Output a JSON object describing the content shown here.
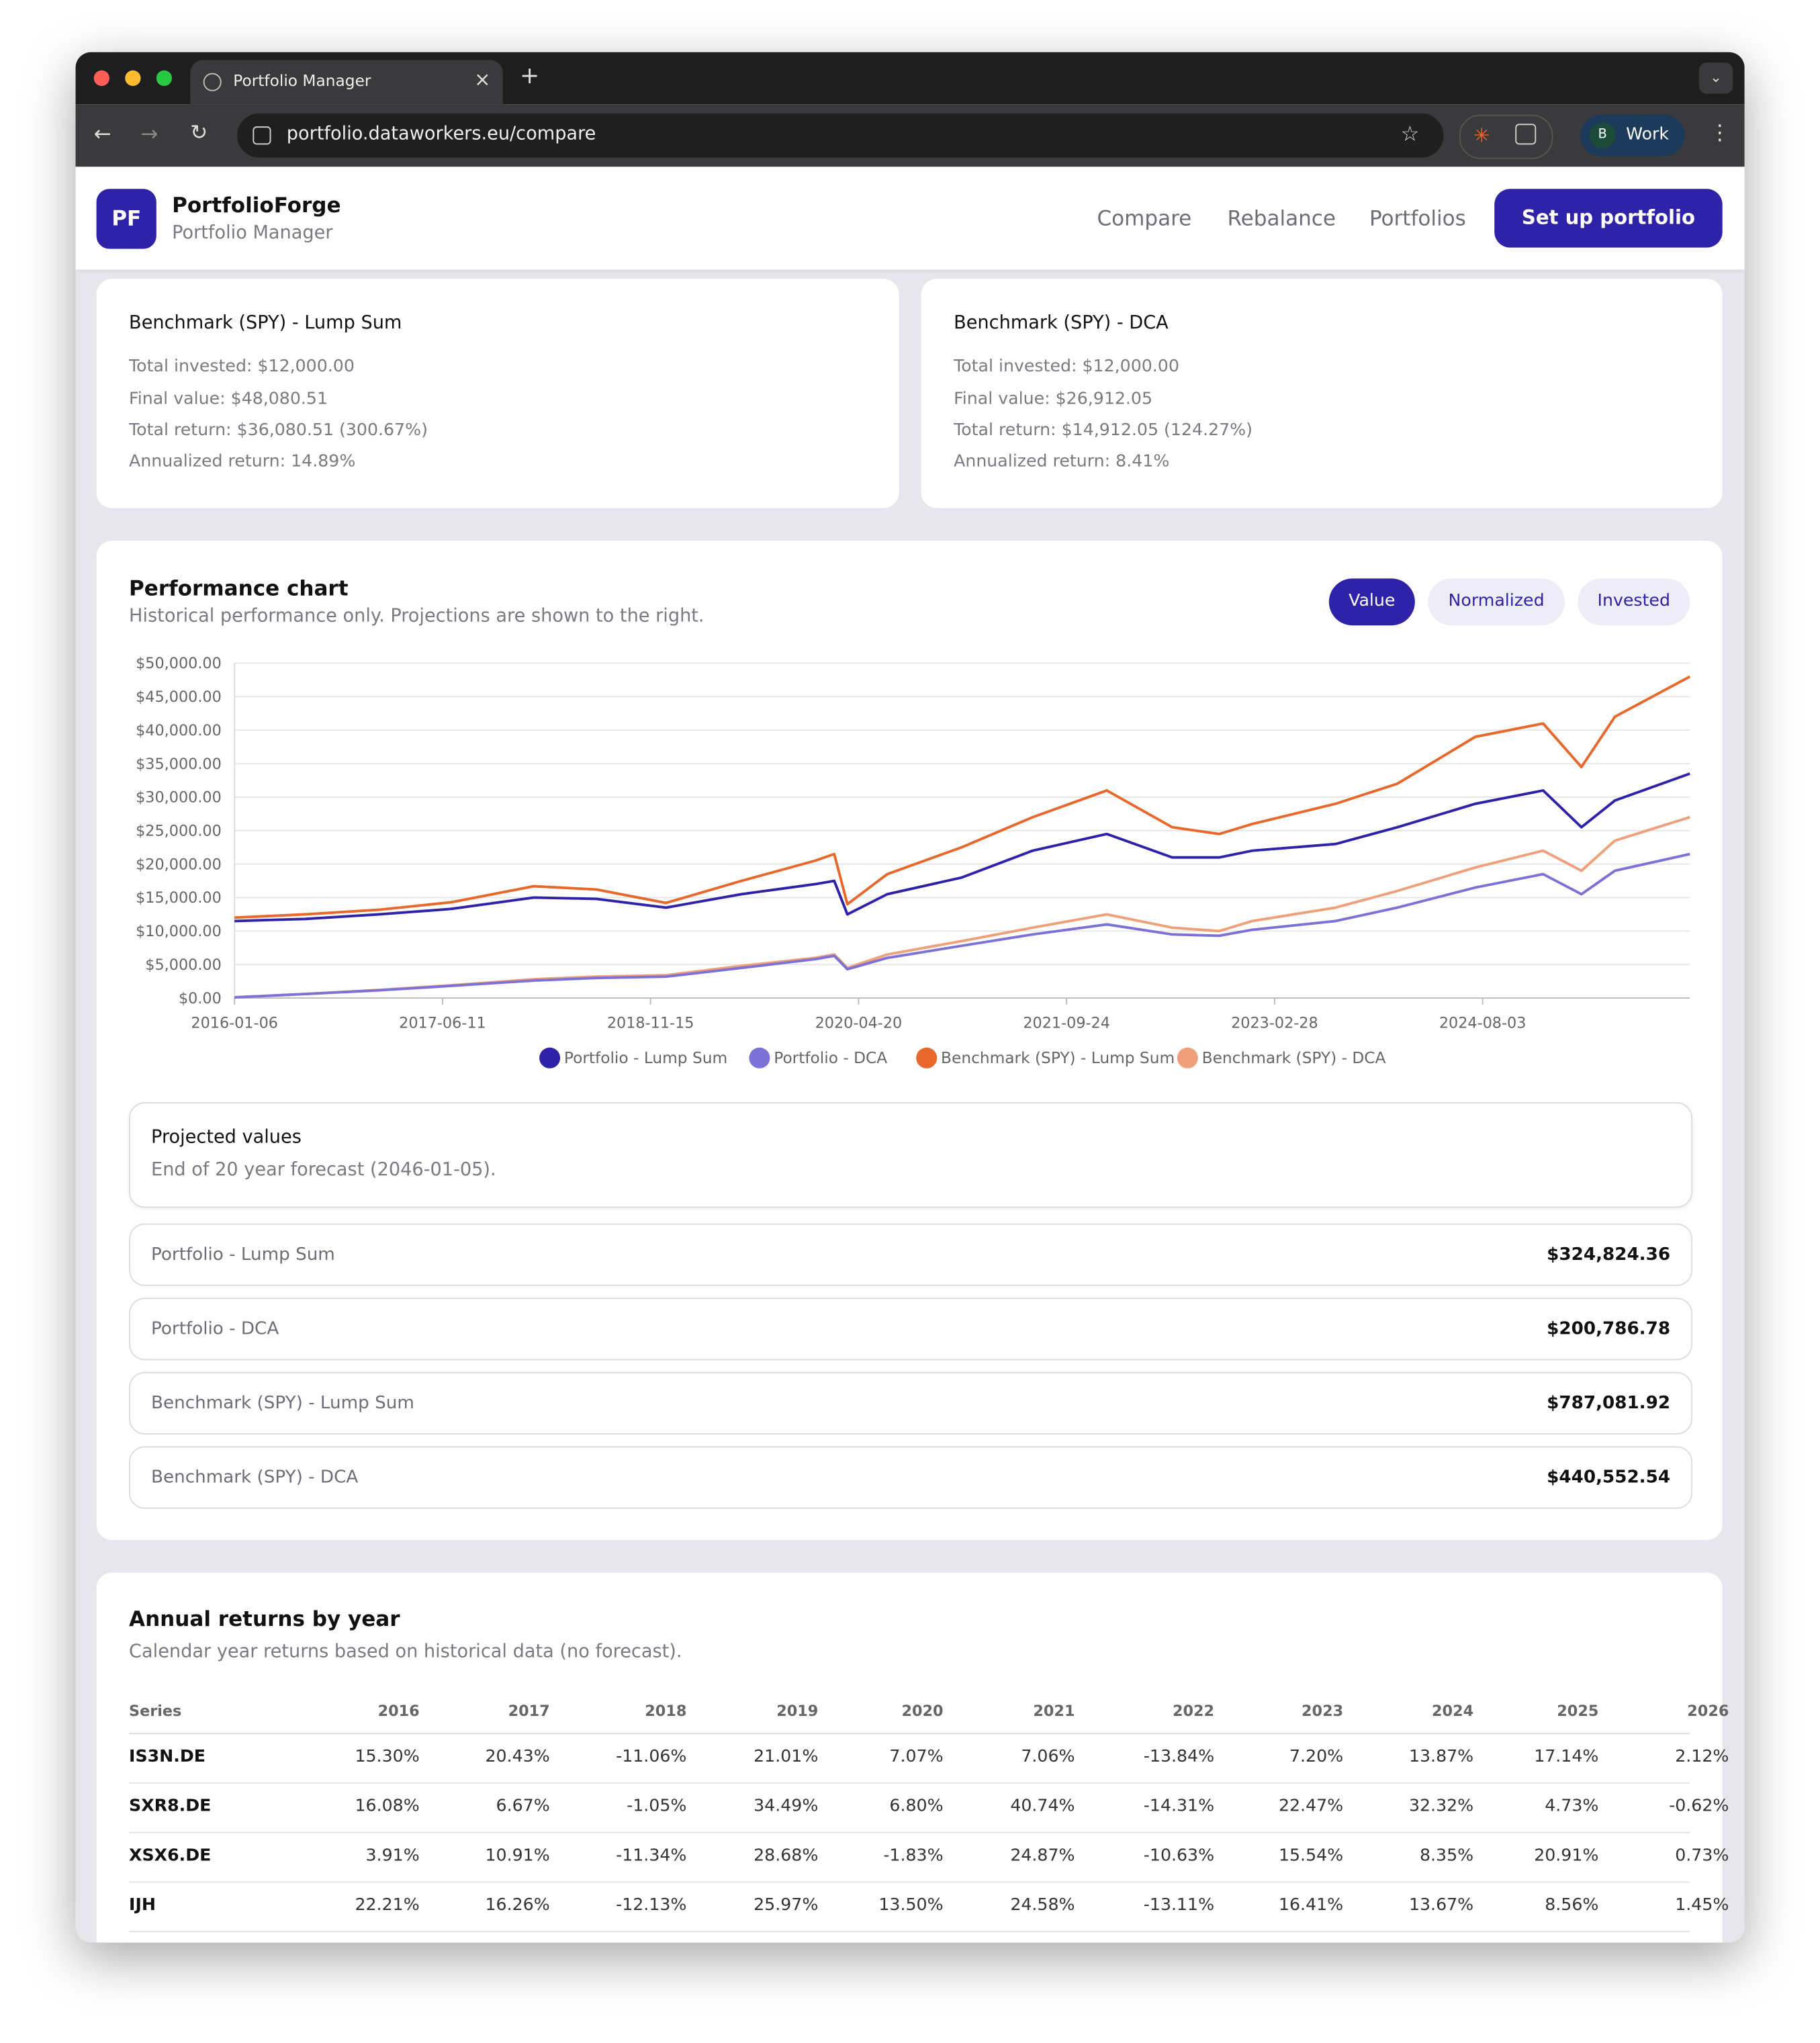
{
  "browser": {
    "tab_title": "Portfolio Manager",
    "url": "portfolio.dataworkers.eu/compare",
    "profile_initial": "B",
    "profile": "Work"
  },
  "header": {
    "logo": "PF",
    "app_name": "PortfolioForge",
    "subtitle": "Portfolio Manager",
    "nav": [
      "Compare",
      "Rebalance",
      "Portfolios"
    ],
    "cta": "Set up portfolio"
  },
  "summary_cards": [
    {
      "title": "Benchmark (SPY) - Lump Sum",
      "lines": [
        "Total invested: $12,000.00",
        "Final value: $48,080.51",
        "Total return: $36,080.51 (300.67%)",
        "Annualized return: 14.89%"
      ]
    },
    {
      "title": "Benchmark (SPY) - DCA",
      "lines": [
        "Total invested: $12,000.00",
        "Final value: $26,912.05",
        "Total return: $14,912.05 (124.27%)",
        "Annualized return: 8.41%"
      ]
    }
  ],
  "performance": {
    "title": "Performance chart",
    "subtitle": "Historical performance only. Projections are shown to the right.",
    "controls": [
      "Value",
      "Normalized",
      "Invested"
    ],
    "active_control": 0
  },
  "chart_data": {
    "type": "line",
    "x": [
      "2016-01-06",
      "2016-07-01",
      "2017-01-03",
      "2017-07-03",
      "2018-01-26",
      "2018-07-02",
      "2018-12-24",
      "2019-07-01",
      "2020-01-02",
      "2020-02-19",
      "2020-03-23",
      "2020-07-01",
      "2021-01-04",
      "2021-07-01",
      "2022-01-03",
      "2022-06-16",
      "2022-10-12",
      "2023-01-03",
      "2023-07-31",
      "2024-01-02",
      "2024-07-16",
      "2025-01-02",
      "2025-04-08",
      "2025-07-01",
      "2026-01-05"
    ],
    "series": [
      {
        "name": "Portfolio - Lump Sum",
        "color": "#2e22a8",
        "values": [
          11500,
          11800,
          12500,
          13300,
          15000,
          14800,
          13500,
          15500,
          17000,
          17500,
          12500,
          15500,
          18000,
          22000,
          24500,
          21000,
          21000,
          22000,
          23000,
          25500,
          29000,
          31000,
          25500,
          29500,
          33500
        ]
      },
      {
        "name": "Portfolio - DCA",
        "color": "#7c71d6",
        "values": [
          100,
          600,
          1150,
          1800,
          2600,
          3000,
          3200,
          4500,
          5800,
          6300,
          4300,
          6000,
          7800,
          9500,
          11000,
          9500,
          9300,
          10200,
          11500,
          13500,
          16500,
          18500,
          15500,
          19000,
          21500
        ]
      },
      {
        "name": "Benchmark (SPY) - Lump Sum",
        "color": "#e8672b",
        "values": [
          12000,
          12500,
          13200,
          14300,
          16700,
          16200,
          14200,
          17500,
          20500,
          21500,
          14000,
          18500,
          22500,
          27000,
          31000,
          25500,
          24500,
          26000,
          29000,
          32000,
          39000,
          41000,
          34500,
          42000,
          48000
        ]
      },
      {
        "name": "Benchmark (SPY) - DCA",
        "color": "#efa07a",
        "values": [
          100,
          600,
          1200,
          1900,
          2800,
          3200,
          3400,
          4800,
          6000,
          6500,
          4500,
          6500,
          8500,
          10500,
          12500,
          10500,
          10000,
          11500,
          13500,
          16000,
          19500,
          22000,
          19000,
          23500,
          27000
        ]
      }
    ],
    "xlim": [
      "2016-01-06",
      "2026-01-05"
    ],
    "xticks": [
      "2016-01-06",
      "2017-06-11",
      "2018-11-15",
      "2020-04-20",
      "2021-09-24",
      "2023-02-28",
      "2024-08-03"
    ],
    "ylim": [
      0,
      50000
    ],
    "yticks": [
      {
        "value": 0,
        "label": "$0.00"
      },
      {
        "value": 5000,
        "label": "$5,000.00"
      },
      {
        "value": 10000,
        "label": "$10,000.00"
      },
      {
        "value": 15000,
        "label": "$15,000.00"
      },
      {
        "value": 20000,
        "label": "$20,000.00"
      },
      {
        "value": 25000,
        "label": "$25,000.00"
      },
      {
        "value": 30000,
        "label": "$30,000.00"
      },
      {
        "value": 35000,
        "label": "$35,000.00"
      },
      {
        "value": 40000,
        "label": "$40,000.00"
      },
      {
        "value": 45000,
        "label": "$45,000.00"
      },
      {
        "value": 50000,
        "label": "$50,000.00"
      }
    ],
    "grid": true,
    "legend": "bottom"
  },
  "projections": {
    "title": "Projected values",
    "subtitle": "End of 20 year forecast (2046-01-05).",
    "rows": [
      [
        "Portfolio - Lump Sum",
        "$324,824.36"
      ],
      [
        "Portfolio - DCA",
        "$200,786.78"
      ],
      [
        "Benchmark (SPY) - Lump Sum",
        "$787,081.92"
      ],
      [
        "Benchmark (SPY) - DCA",
        "$440,552.54"
      ]
    ]
  },
  "annual_returns": {
    "title": "Annual returns by year",
    "subtitle": "Calendar year returns based on historical data (no forecast).",
    "columns": [
      "Series",
      "2016",
      "2017",
      "2018",
      "2019",
      "2020",
      "2021",
      "2022",
      "2023",
      "2024",
      "2025",
      "2026"
    ],
    "rows": [
      [
        "IS3N.DE",
        "15.30%",
        "20.43%",
        "-11.06%",
        "21.01%",
        "7.07%",
        "7.06%",
        "-13.84%",
        "7.20%",
        "13.87%",
        "17.14%",
        "2.12%"
      ],
      [
        "SXR8.DE",
        "16.08%",
        "6.67%",
        "-1.05%",
        "34.49%",
        "6.80%",
        "40.74%",
        "-14.31%",
        "22.47%",
        "32.32%",
        "4.73%",
        "-0.62%"
      ],
      [
        "XSX6.DE",
        "3.91%",
        "10.91%",
        "-11.34%",
        "28.68%",
        "-1.83%",
        "24.87%",
        "-10.63%",
        "15.54%",
        "8.35%",
        "20.91%",
        "0.73%"
      ],
      [
        "IJH",
        "22.21%",
        "16.26%",
        "-12.13%",
        "25.97%",
        "13.50%",
        "24.58%",
        "-13.11%",
        "16.41%",
        "13.67%",
        "8.56%",
        "1.45%"
      ]
    ]
  }
}
